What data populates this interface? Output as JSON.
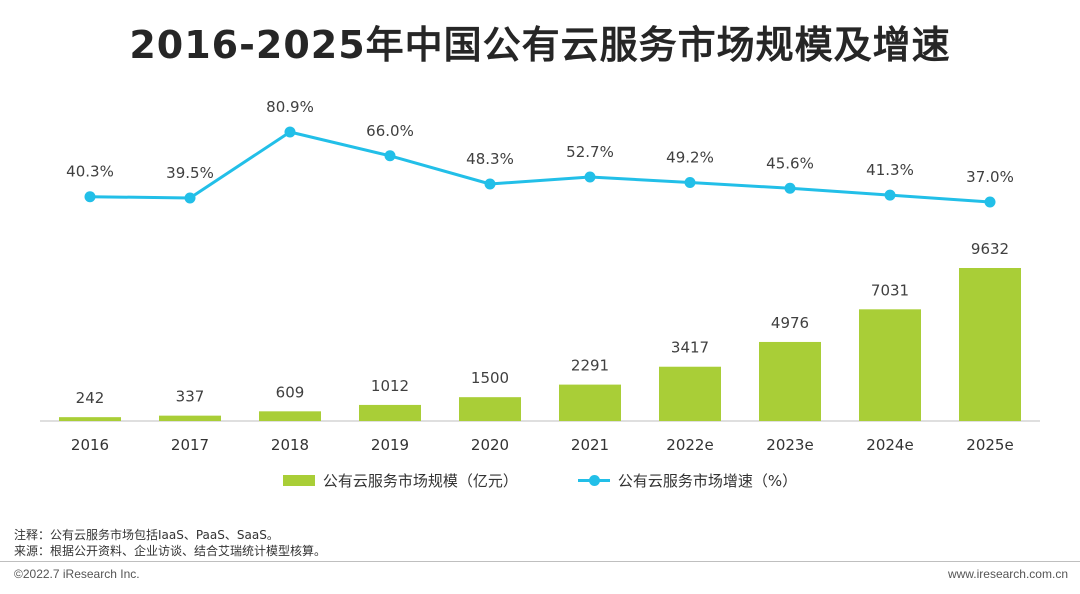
{
  "header": {
    "title": "2016-2025年中国公有云服务市场规模及增速"
  },
  "chart_data": {
    "type": "bar",
    "title": "2016-2025年中国公有云服务市场规模及增速",
    "categories": [
      "2016",
      "2017",
      "2018",
      "2019",
      "2020",
      "2021",
      "2022e",
      "2023e",
      "2024e",
      "2025e"
    ],
    "series": [
      {
        "name": "公有云服务市场规模（亿元）",
        "type": "bar",
        "values": [
          242,
          337,
          609,
          1012,
          1500,
          2291,
          3417,
          4976,
          7031,
          9632
        ]
      },
      {
        "name": "公有云服务市场增速（%）",
        "type": "line",
        "values": [
          40.3,
          39.5,
          80.9,
          66.0,
          48.3,
          52.7,
          49.2,
          45.6,
          41.3,
          37.0
        ],
        "labels": [
          "40.3%",
          "39.5%",
          "80.9%",
          "66.0%",
          "48.3%",
          "52.7%",
          "49.2%",
          "45.6%",
          "41.3%",
          "37.0%"
        ]
      }
    ],
    "colors": {
      "bar": "#A9CE37",
      "line": "#22BFE8",
      "axis": "#BFBFBF"
    },
    "legend_position": "bottom",
    "grid": false
  },
  "legend": {
    "bar_label": "公有云服务市场规模（亿元）",
    "line_label": "公有云服务市场增速（%）"
  },
  "footer": {
    "note": "注释：公有云服务市场包括IaaS、PaaS、SaaS。",
    "source": "来源：根据公开资料、企业访谈、结合艾瑞统计模型核算。",
    "copyright": "©2022.7 iResearch Inc.",
    "website": "www.iresearch.com.cn"
  }
}
